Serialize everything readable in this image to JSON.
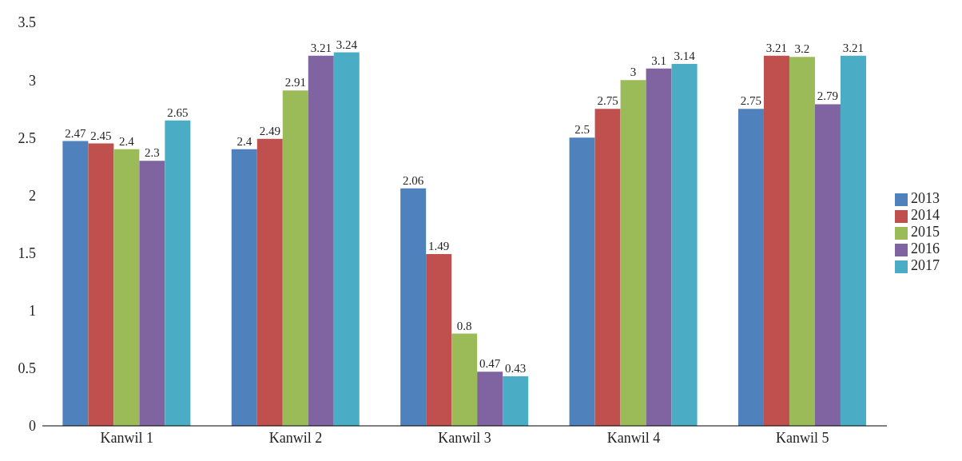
{
  "chart_data": {
    "type": "bar",
    "categories": [
      "Kanwil 1",
      "Kanwil 2",
      "Kanwil 3",
      "Kanwil 4",
      "Kanwil 5"
    ],
    "series": [
      {
        "name": "2013",
        "color": "#4f81bd",
        "values": [
          2.47,
          2.4,
          2.06,
          2.5,
          2.75
        ]
      },
      {
        "name": "2014",
        "color": "#c0504d",
        "values": [
          2.45,
          2.49,
          1.49,
          2.75,
          3.21
        ]
      },
      {
        "name": "2015",
        "color": "#9bbb59",
        "values": [
          2.4,
          2.91,
          0.8,
          3,
          3.2
        ]
      },
      {
        "name": "2016",
        "color": "#8064a2",
        "values": [
          2.3,
          3.21,
          0.47,
          3.1,
          2.79
        ]
      },
      {
        "name": "2017",
        "color": "#4bacc6",
        "values": [
          2.65,
          3.24,
          0.43,
          3.14,
          3.21
        ]
      }
    ],
    "ylim": [
      0,
      3.5
    ],
    "yticks": [
      0,
      0.5,
      1,
      1.5,
      2,
      2.5,
      3,
      3.5
    ],
    "data_labels": true,
    "grid": false,
    "legend": "right"
  }
}
